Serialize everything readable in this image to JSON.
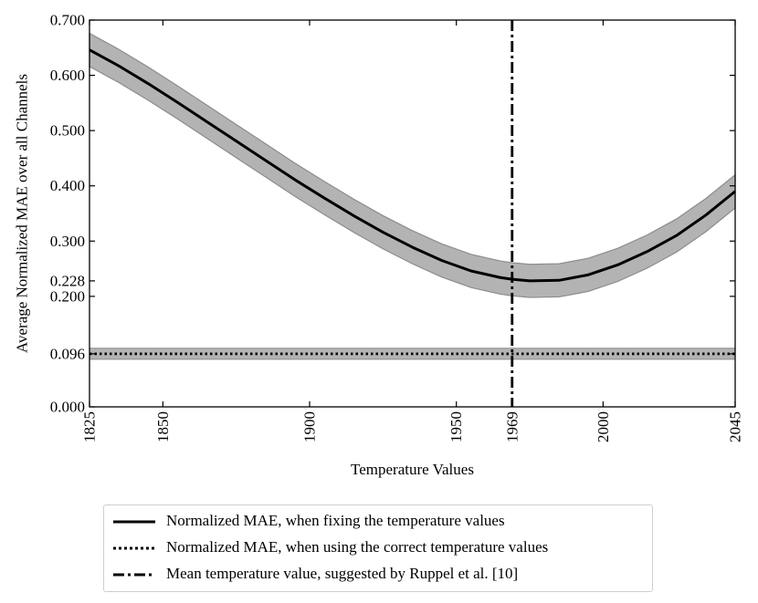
{
  "chart_data": {
    "type": "line",
    "xlabel": "Temperature Values",
    "ylabel": "Average Normalized MAE over all Channels",
    "xlim": [
      1825,
      2045
    ],
    "ylim": [
      0.0,
      0.7
    ],
    "xticks": [
      1825,
      1850,
      1900,
      1950,
      1969,
      2000,
      2045
    ],
    "xtick_labels": [
      "1825",
      "1850",
      "1900",
      "1950",
      "1969",
      "2000",
      "2045"
    ],
    "yticks": [
      0.0,
      0.096,
      0.2,
      0.228,
      0.3,
      0.4,
      0.5,
      0.6,
      0.7
    ],
    "ytick_labels": [
      "0.000",
      "0.096",
      "0.200",
      "0.228",
      "0.300",
      "0.400",
      "0.500",
      "0.600",
      "0.700"
    ],
    "grid": false,
    "legend_position": "below",
    "series": [
      {
        "name": "Normalized MAE, when fixing the temperature values",
        "style": "solid",
        "x": [
          1825,
          1835,
          1845,
          1855,
          1865,
          1875,
          1885,
          1895,
          1905,
          1915,
          1925,
          1935,
          1945,
          1955,
          1965,
          1969,
          1975,
          1985,
          1995,
          2005,
          2015,
          2025,
          2035,
          2045
        ],
        "y": [
          0.646,
          0.617,
          0.585,
          0.551,
          0.516,
          0.481,
          0.446,
          0.411,
          0.378,
          0.346,
          0.316,
          0.289,
          0.265,
          0.246,
          0.234,
          0.231,
          0.228,
          0.229,
          0.239,
          0.257,
          0.281,
          0.31,
          0.347,
          0.39
        ],
        "band": 0.03,
        "color": "#000000",
        "band_color": "#b3b3b3"
      },
      {
        "name": "Normalized MAE, when using the correct temperature values",
        "style": "dotted",
        "x": [
          1825,
          2045
        ],
        "y": [
          0.096,
          0.096
        ],
        "band": 0.01,
        "color": "#000000",
        "band_color": "#b3b3b3"
      },
      {
        "name": "Mean temperature value, suggested by Ruppel et al. [10]",
        "style": "dashdot",
        "vertical_x": 1969,
        "color": "#000000"
      }
    ]
  }
}
